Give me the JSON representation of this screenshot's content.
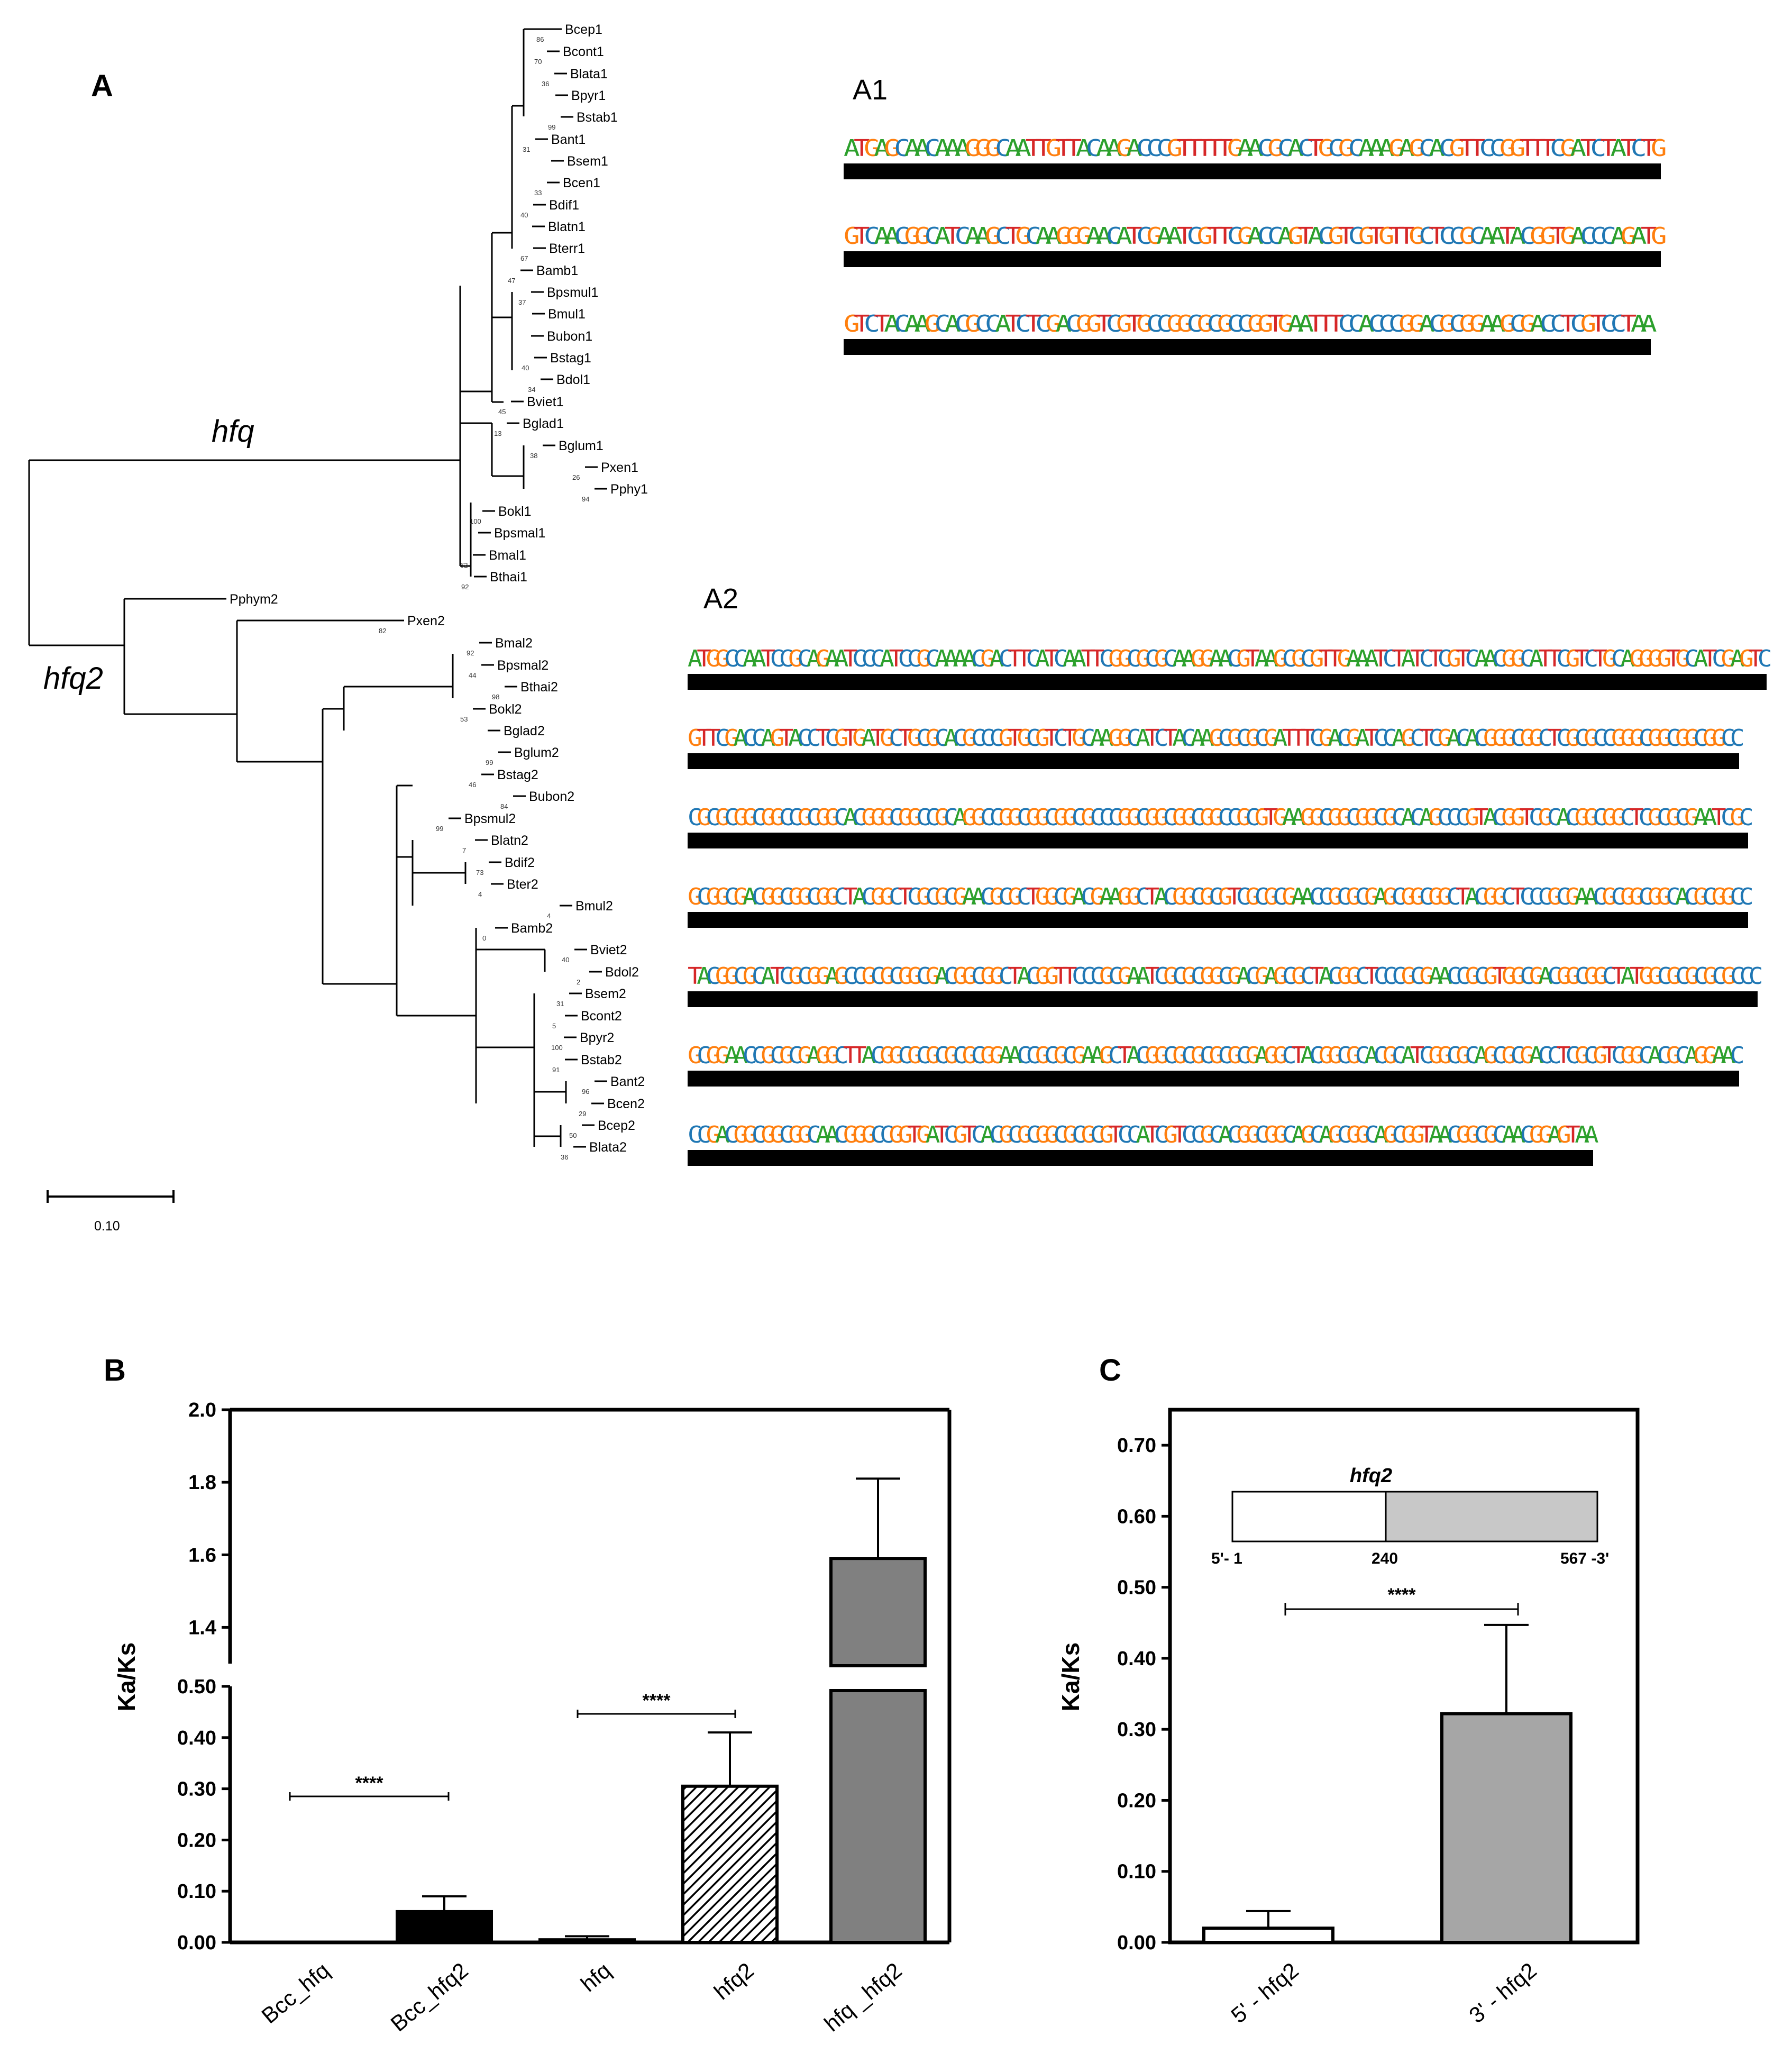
{
  "panel_a": {
    "label": "A",
    "clade_labels": [
      "hfq",
      "hfq2"
    ],
    "scale_label": "0.10",
    "leaves": [
      {
        "name": "Bcep1",
        "boot": "86"
      },
      {
        "name": "Bcont1",
        "boot": "70"
      },
      {
        "name": "Blata1",
        "boot": "36"
      },
      {
        "name": "Bpyr1",
        "boot": ""
      },
      {
        "name": "Bstab1",
        "boot": "99"
      },
      {
        "name": "Bant1",
        "boot": "31"
      },
      {
        "name": "Bsem1",
        "boot": ""
      },
      {
        "name": "Bcen1",
        "boot": "33"
      },
      {
        "name": "Bdif1",
        "boot": "40"
      },
      {
        "name": "Blatn1",
        "boot": ""
      },
      {
        "name": "Bterr1",
        "boot": "67"
      },
      {
        "name": "Bamb1",
        "boot": "47"
      },
      {
        "name": "Bpsmul1",
        "boot": "37"
      },
      {
        "name": "Bmul1",
        "boot": ""
      },
      {
        "name": "Bubon1",
        "boot": ""
      },
      {
        "name": "Bstag1",
        "boot": "40"
      },
      {
        "name": "Bdol1",
        "boot": "34"
      },
      {
        "name": "Bviet1",
        "boot": "45"
      },
      {
        "name": "Bglad1",
        "boot": "13"
      },
      {
        "name": "Bglum1",
        "boot": "38"
      },
      {
        "name": "Pxen1",
        "boot": "26"
      },
      {
        "name": "Pphy1",
        "boot": "94"
      },
      {
        "name": "Bokl1",
        "boot": "100"
      },
      {
        "name": "Bpsmal1",
        "boot": ""
      },
      {
        "name": "Bmal1",
        "boot": "62"
      },
      {
        "name": "Bthai1",
        "boot": "92"
      },
      {
        "name": "Pphym2",
        "boot": ""
      },
      {
        "name": "Pxen2",
        "boot": "82"
      },
      {
        "name": "Bmal2",
        "boot": "92"
      },
      {
        "name": "Bpsmal2",
        "boot": "44"
      },
      {
        "name": "Bthai2",
        "boot": "98"
      },
      {
        "name": "Bokl2",
        "boot": "53"
      },
      {
        "name": "Bglad2",
        "boot": ""
      },
      {
        "name": "Bglum2",
        "boot": "99"
      },
      {
        "name": "Bstag2",
        "boot": "46"
      },
      {
        "name": "Bubon2",
        "boot": "84"
      },
      {
        "name": "Bpsmul2",
        "boot": "99"
      },
      {
        "name": "Blatn2",
        "boot": "7"
      },
      {
        "name": "Bdif2",
        "boot": "73"
      },
      {
        "name": "Bter2",
        "boot": "4"
      },
      {
        "name": "Bmul2",
        "boot": "4"
      },
      {
        "name": "Bamb2",
        "boot": "0"
      },
      {
        "name": "Bviet2",
        "boot": "40"
      },
      {
        "name": "Bdol2",
        "boot": "2"
      },
      {
        "name": "Bsem2",
        "boot": "31"
      },
      {
        "name": "Bcont2",
        "boot": "5"
      },
      {
        "name": "Bpyr2",
        "boot": "100"
      },
      {
        "name": "Bstab2",
        "boot": "91"
      },
      {
        "name": "Bant2",
        "boot": "96"
      },
      {
        "name": "Bcen2",
        "boot": "29"
      },
      {
        "name": "Bcep2",
        "boot": "50"
      },
      {
        "name": "Blata2",
        "boot": "36"
      }
    ],
    "a1": {
      "label": "A1",
      "rows": [
        "ATGAGCAACAAAGGGCAATTGTTACAAGACCCGTTTTTGAACGCACTGCGCAAAGAGCACGTTCCGGTTTCGATCTATCTG",
        "GTCAACGGCATCAAGCTGCAAGGGAACATCGAATCGTTCGACCAGTACGTCGTGTTGCTCCGCAATACGGTGACCCAGATG",
        "GTCTACAAGCACGCCATCTCGACGGTCGTGCCGGCGCGCCGGTGAATTTCCACCCGGACGCGGAAGCGACCTCGTCCTAA"
      ]
    },
    "a2": {
      "label": "A2",
      "rows": [
        "ATGGCCAATCCGCAGAATCCCATCCGCAAAACGACTTCATCAATTCGGCGCGCAAGGAACGTAAGCGCGTTGAAATCTATCTCGTCAACGGCATTCGTCTGCAGGGGTGCATCGAGTC",
        "GTTCGACCAGTACCTCGTGATGCTGCGCACGCCCGTGCGTCTGCAAGGCATCTACAAGCGCGCGATTTCGACGATCCAGCTCGACACGGGCGGCTCGCGCCGGGCGGCGGCGGCC",
        "CGCGCGGCGGCCGCGGCACGGGCGGCCGCAGGCCGGCGGCGGCGCCCGGCGGCGGCGGCCGCGTGAAGGCGGCGGCGCACAGCCCGTACGGTCGCACGGCGGCTCGCGCGAATCGC",
        "GCGGCGACGGCGGCGGCTACGGCTCGCGCGAACGCGCTGGCGACGAAGGCTACGGCGCGTCGCGCGAACCGCGCGAGCGGCGGCTACGGCTCCCGCGAACGCGGCGGCACGCGGCC",
        "TACGGCGCATCGCGGAGCCGCGCGGCGACGGCGGCTACGGTTCCCGCGAATCGCGCGGCGACGAGCGCTACGGCTCCCGCGAACCGCGTGGCGACGGCGGCTATGGCGCGCGCGCCC",
        "GCGGAACCGCGCGAGGCTTACGGCGCGCGCGCGGAACCGCGCGAAGCTACGGCGCGCGCGCGAGGCTACGGCGCACGCATCGGCGCAGCGCGACCTCGCGTCGGCACGCAGGAAC",
        "CCGACGGCGGCGGCAACGGGCCGGTGATCGTCACGCGCGGCGCGCGTCCATCGTCCGCACGGCGGCAGCAGCGGCAGCGGTAACGGCGCAACGGAGTAA"
      ]
    }
  },
  "panel_b": {
    "label": "B",
    "y_axis_label": "Ka/Ks",
    "lower_ticks": [
      "0.00",
      "0.10",
      "0.20",
      "0.30",
      "0.40",
      "0.50"
    ],
    "upper_ticks": [
      "1.4",
      "1.6",
      "1.8",
      "2.0"
    ],
    "significance": [
      "****",
      "****"
    ]
  },
  "panel_c": {
    "label": "C",
    "y_axis_label": "Ka/Ks",
    "ticks": [
      "0.00",
      "0.10",
      "0.20",
      "0.30",
      "0.40",
      "0.50",
      "0.60",
      "0.70"
    ],
    "significance": "****",
    "gene_diagram": {
      "gene": "hfq2",
      "left_label": "5'- 1",
      "mid_label": "240",
      "right_label": "567 -3'"
    }
  },
  "chart_data": [
    {
      "type": "bar",
      "title": "",
      "xlabel": "",
      "ylabel": "Ka/Ks",
      "categories": [
        "Bcc_hfq",
        "Bcc_hfq2",
        "hfq",
        "hfq2",
        "hfq _hfq2"
      ],
      "values": [
        0.0,
        0.06,
        0.005,
        0.305,
        1.59
      ],
      "errors": [
        0.0,
        0.03,
        0.007,
        0.105,
        0.22
      ],
      "fills": [
        "white",
        "black",
        "white",
        "hatched",
        "gray"
      ],
      "ylim": [
        0,
        2.0
      ],
      "axis_break": [
        0.5,
        1.3
      ],
      "significance_pairs": [
        [
          "Bcc_hfq",
          "Bcc_hfq2",
          "****"
        ],
        [
          "hfq",
          "hfq2",
          "****"
        ]
      ]
    },
    {
      "type": "bar",
      "title": "",
      "xlabel": "",
      "ylabel": "Ka/Ks",
      "categories": [
        "5' - hfq2",
        "3' - hfq2"
      ],
      "values": [
        0.02,
        0.322
      ],
      "errors": [
        0.024,
        0.125
      ],
      "fills": [
        "white",
        "gray"
      ],
      "ylim": [
        0,
        0.75
      ],
      "significance_pairs": [
        [
          "5' - hfq2",
          "3' - hfq2",
          "****"
        ]
      ]
    }
  ],
  "colors": {
    "A": "#2ca02c",
    "C": "#1f77b4",
    "G": "#ff7f0e",
    "T": "#d62728",
    "bar_gray": "#808080",
    "panel_c_gray": "#a6a6a6",
    "box_gray": "#c8c8c8"
  }
}
